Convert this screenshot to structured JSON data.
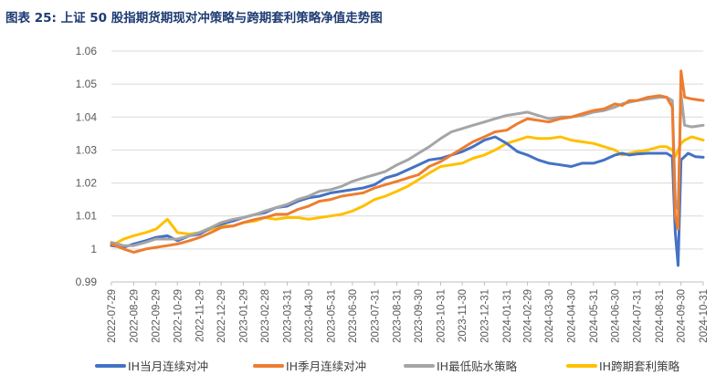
{
  "figure": {
    "title": "图表 25: 上证 50 股指期货期现对冲策略与跨期套利策略净值走势图"
  },
  "chart_data": {
    "type": "line",
    "title": "图表 25: 上证 50 股指期货期现对冲策略与跨期套利策略净值走势图",
    "xlabel": "",
    "ylabel": "",
    "ylim": [
      0.99,
      1.06
    ],
    "yticks": [
      0.99,
      1,
      1.01,
      1.02,
      1.03,
      1.04,
      1.05,
      1.06
    ],
    "ytick_labels": [
      "0.99",
      "1",
      "1.01",
      "1.02",
      "1.03",
      "1.04",
      "1.05",
      "1.06"
    ],
    "x_tick_labels": [
      "2022-07-29",
      "2022-08-29",
      "2022-09-29",
      "2022-10-29",
      "2022-11-29",
      "2022-12-29",
      "2023-01-29",
      "2023-02-28",
      "2023-03-31",
      "2023-04-30",
      "2023-05-31",
      "2023-06-30",
      "2023-07-31",
      "2023-08-31",
      "2023-09-30",
      "2023-10-31",
      "2023-11-30",
      "2023-12-31",
      "2024-01-31",
      "2024-02-29",
      "2024-03-30",
      "2024-04-30",
      "2024-05-31",
      "2024-06-30",
      "2024-07-31",
      "2024-08-31",
      "2024-09-30",
      "2024-10-31"
    ],
    "grid": "horizontal",
    "legend_position": "bottom",
    "series": [
      {
        "name": "IH当月连续对冲",
        "color": "#4472c4",
        "x": [
          "2022-07-29",
          "2022-08-15",
          "2022-08-29",
          "2022-09-15",
          "2022-09-29",
          "2022-10-15",
          "2022-10-29",
          "2022-11-15",
          "2022-11-29",
          "2022-12-15",
          "2022-12-29",
          "2023-01-15",
          "2023-01-29",
          "2023-02-15",
          "2023-02-28",
          "2023-03-15",
          "2023-03-31",
          "2023-04-15",
          "2023-04-30",
          "2023-05-15",
          "2023-05-31",
          "2023-06-15",
          "2023-06-30",
          "2023-07-15",
          "2023-07-31",
          "2023-08-15",
          "2023-08-31",
          "2023-09-15",
          "2023-09-30",
          "2023-10-15",
          "2023-10-31",
          "2023-11-15",
          "2023-11-30",
          "2023-12-15",
          "2023-12-31",
          "2024-01-15",
          "2024-01-31",
          "2024-02-15",
          "2024-02-29",
          "2024-03-15",
          "2024-03-30",
          "2024-04-15",
          "2024-04-30",
          "2024-05-15",
          "2024-05-31",
          "2024-06-15",
          "2024-06-30",
          "2024-07-10",
          "2024-07-20",
          "2024-07-31",
          "2024-08-15",
          "2024-08-31",
          "2024-09-10",
          "2024-09-18",
          "2024-09-22",
          "2024-09-26",
          "2024-09-30",
          "2024-10-10",
          "2024-10-20",
          "2024-10-31"
        ],
        "values": [
          1.001,
          1.0005,
          1.0015,
          1.0025,
          1.0035,
          1.004,
          1.0025,
          1.004,
          1.0045,
          1.0065,
          1.0075,
          1.0085,
          1.0095,
          1.0105,
          1.011,
          1.0125,
          1.013,
          1.0145,
          1.0155,
          1.016,
          1.017,
          1.0175,
          1.018,
          1.0185,
          1.0195,
          1.0215,
          1.0225,
          1.024,
          1.0255,
          1.027,
          1.0275,
          1.0285,
          1.0295,
          1.031,
          1.033,
          1.034,
          1.032,
          1.0295,
          1.0285,
          1.027,
          1.026,
          1.0255,
          1.025,
          1.026,
          1.026,
          1.027,
          1.0285,
          1.029,
          1.0285,
          1.0288,
          1.029,
          1.029,
          1.029,
          1.028,
          1.005,
          0.995,
          1.027,
          1.029,
          1.028,
          1.0278
        ]
      },
      {
        "name": "IH季月连续对冲",
        "color": "#ed7d31",
        "x": [
          "2022-07-29",
          "2022-08-15",
          "2022-08-29",
          "2022-09-15",
          "2022-09-29",
          "2022-10-15",
          "2022-10-29",
          "2022-11-15",
          "2022-11-29",
          "2022-12-15",
          "2022-12-29",
          "2023-01-15",
          "2023-01-29",
          "2023-02-15",
          "2023-02-28",
          "2023-03-15",
          "2023-03-31",
          "2023-04-15",
          "2023-04-30",
          "2023-05-15",
          "2023-05-31",
          "2023-06-15",
          "2023-06-30",
          "2023-07-15",
          "2023-07-31",
          "2023-08-15",
          "2023-08-31",
          "2023-09-15",
          "2023-09-30",
          "2023-10-15",
          "2023-10-31",
          "2023-11-15",
          "2023-11-30",
          "2023-12-15",
          "2023-12-31",
          "2024-01-15",
          "2024-01-31",
          "2024-02-15",
          "2024-02-29",
          "2024-03-15",
          "2024-03-30",
          "2024-04-15",
          "2024-04-30",
          "2024-05-15",
          "2024-05-31",
          "2024-06-15",
          "2024-06-30",
          "2024-07-10",
          "2024-07-20",
          "2024-07-31",
          "2024-08-15",
          "2024-08-31",
          "2024-09-10",
          "2024-09-18",
          "2024-09-22",
          "2024-09-26",
          "2024-09-30",
          "2024-10-05",
          "2024-10-15",
          "2024-10-31"
        ],
        "values": [
          1.0015,
          1.0,
          0.999,
          1.0,
          1.0005,
          1.001,
          1.0015,
          1.0025,
          1.0035,
          1.005,
          1.0065,
          1.007,
          1.008,
          1.009,
          1.0095,
          1.0105,
          1.0105,
          1.012,
          1.013,
          1.0145,
          1.015,
          1.016,
          1.0165,
          1.017,
          1.0185,
          1.0195,
          1.0205,
          1.0215,
          1.0225,
          1.025,
          1.0265,
          1.0285,
          1.0305,
          1.0325,
          1.034,
          1.0355,
          1.036,
          1.038,
          1.0395,
          1.039,
          1.0385,
          1.0395,
          1.04,
          1.041,
          1.042,
          1.0425,
          1.044,
          1.0435,
          1.045,
          1.045,
          1.046,
          1.0465,
          1.046,
          1.043,
          1.01,
          1.006,
          1.054,
          1.046,
          1.0455,
          1.045
        ]
      },
      {
        "name": "IH最低贴水策略",
        "color": "#a5a5a5",
        "x": [
          "2022-07-29",
          "2022-08-15",
          "2022-08-29",
          "2022-09-15",
          "2022-09-29",
          "2022-10-15",
          "2022-10-29",
          "2022-11-15",
          "2022-11-29",
          "2022-12-15",
          "2022-12-29",
          "2023-01-15",
          "2023-01-29",
          "2023-02-15",
          "2023-02-28",
          "2023-03-15",
          "2023-03-31",
          "2023-04-15",
          "2023-04-30",
          "2023-05-15",
          "2023-05-31",
          "2023-06-15",
          "2023-06-30",
          "2023-07-15",
          "2023-07-31",
          "2023-08-15",
          "2023-08-31",
          "2023-09-15",
          "2023-09-30",
          "2023-10-15",
          "2023-10-31",
          "2023-11-15",
          "2023-11-30",
          "2023-12-15",
          "2023-12-31",
          "2024-01-15",
          "2024-01-31",
          "2024-02-15",
          "2024-02-29",
          "2024-03-15",
          "2024-03-30",
          "2024-04-15",
          "2024-04-30",
          "2024-05-15",
          "2024-05-31",
          "2024-06-15",
          "2024-06-30",
          "2024-07-10",
          "2024-07-20",
          "2024-07-31",
          "2024-08-15",
          "2024-08-31",
          "2024-09-10",
          "2024-09-18",
          "2024-09-22",
          "2024-09-26",
          "2024-09-30",
          "2024-10-05",
          "2024-10-15",
          "2024-10-31"
        ],
        "values": [
          1.002,
          1.001,
          1.001,
          1.002,
          1.003,
          1.003,
          1.003,
          1.004,
          1.005,
          1.0065,
          1.008,
          1.009,
          1.0095,
          1.0105,
          1.0115,
          1.0125,
          1.0135,
          1.015,
          1.016,
          1.0175,
          1.018,
          1.019,
          1.0205,
          1.0215,
          1.0225,
          1.0235,
          1.0255,
          1.027,
          1.029,
          1.031,
          1.0335,
          1.0355,
          1.0365,
          1.0375,
          1.0385,
          1.0395,
          1.0405,
          1.041,
          1.0415,
          1.0405,
          1.0395,
          1.04,
          1.04,
          1.0405,
          1.0415,
          1.042,
          1.043,
          1.044,
          1.0445,
          1.045,
          1.0455,
          1.046,
          1.046,
          1.045,
          1.015,
          1.012,
          1.047,
          1.0375,
          1.037,
          1.0375
        ]
      },
      {
        "name": "IH跨期套利策略",
        "color": "#ffc000",
        "x": [
          "2022-07-29",
          "2022-08-15",
          "2022-08-29",
          "2022-09-15",
          "2022-09-29",
          "2022-10-15",
          "2022-10-29",
          "2022-11-15",
          "2022-11-29",
          "2022-12-15",
          "2022-12-29",
          "2023-01-15",
          "2023-01-29",
          "2023-02-15",
          "2023-02-28",
          "2023-03-15",
          "2023-03-31",
          "2023-04-15",
          "2023-04-30",
          "2023-05-15",
          "2023-05-31",
          "2023-06-15",
          "2023-06-30",
          "2023-07-15",
          "2023-07-31",
          "2023-08-15",
          "2023-08-31",
          "2023-09-15",
          "2023-09-30",
          "2023-10-15",
          "2023-10-31",
          "2023-11-15",
          "2023-11-30",
          "2023-12-15",
          "2023-12-31",
          "2024-01-15",
          "2024-01-31",
          "2024-02-15",
          "2024-02-29",
          "2024-03-15",
          "2024-03-30",
          "2024-04-15",
          "2024-04-30",
          "2024-05-15",
          "2024-05-31",
          "2024-06-15",
          "2024-06-30",
          "2024-07-10",
          "2024-07-20",
          "2024-07-31",
          "2024-08-15",
          "2024-08-31",
          "2024-09-10",
          "2024-09-18",
          "2024-09-22",
          "2024-09-26",
          "2024-09-30",
          "2024-10-05",
          "2024-10-15",
          "2024-10-31"
        ],
        "values": [
          1.001,
          1.003,
          1.004,
          1.005,
          1.006,
          1.009,
          1.005,
          1.0045,
          1.005,
          1.006,
          1.007,
          1.007,
          1.008,
          1.0085,
          1.0095,
          1.009,
          1.0095,
          1.0095,
          1.009,
          1.0095,
          1.01,
          1.0105,
          1.0115,
          1.013,
          1.015,
          1.016,
          1.0175,
          1.019,
          1.021,
          1.023,
          1.025,
          1.0255,
          1.026,
          1.0275,
          1.0285,
          1.03,
          1.032,
          1.033,
          1.034,
          1.0335,
          1.0335,
          1.034,
          1.033,
          1.0325,
          1.032,
          1.031,
          1.03,
          1.0285,
          1.029,
          1.0295,
          1.03,
          1.031,
          1.031,
          1.03,
          1.028,
          1.03,
          1.032,
          1.033,
          1.034,
          1.033
        ]
      }
    ]
  }
}
